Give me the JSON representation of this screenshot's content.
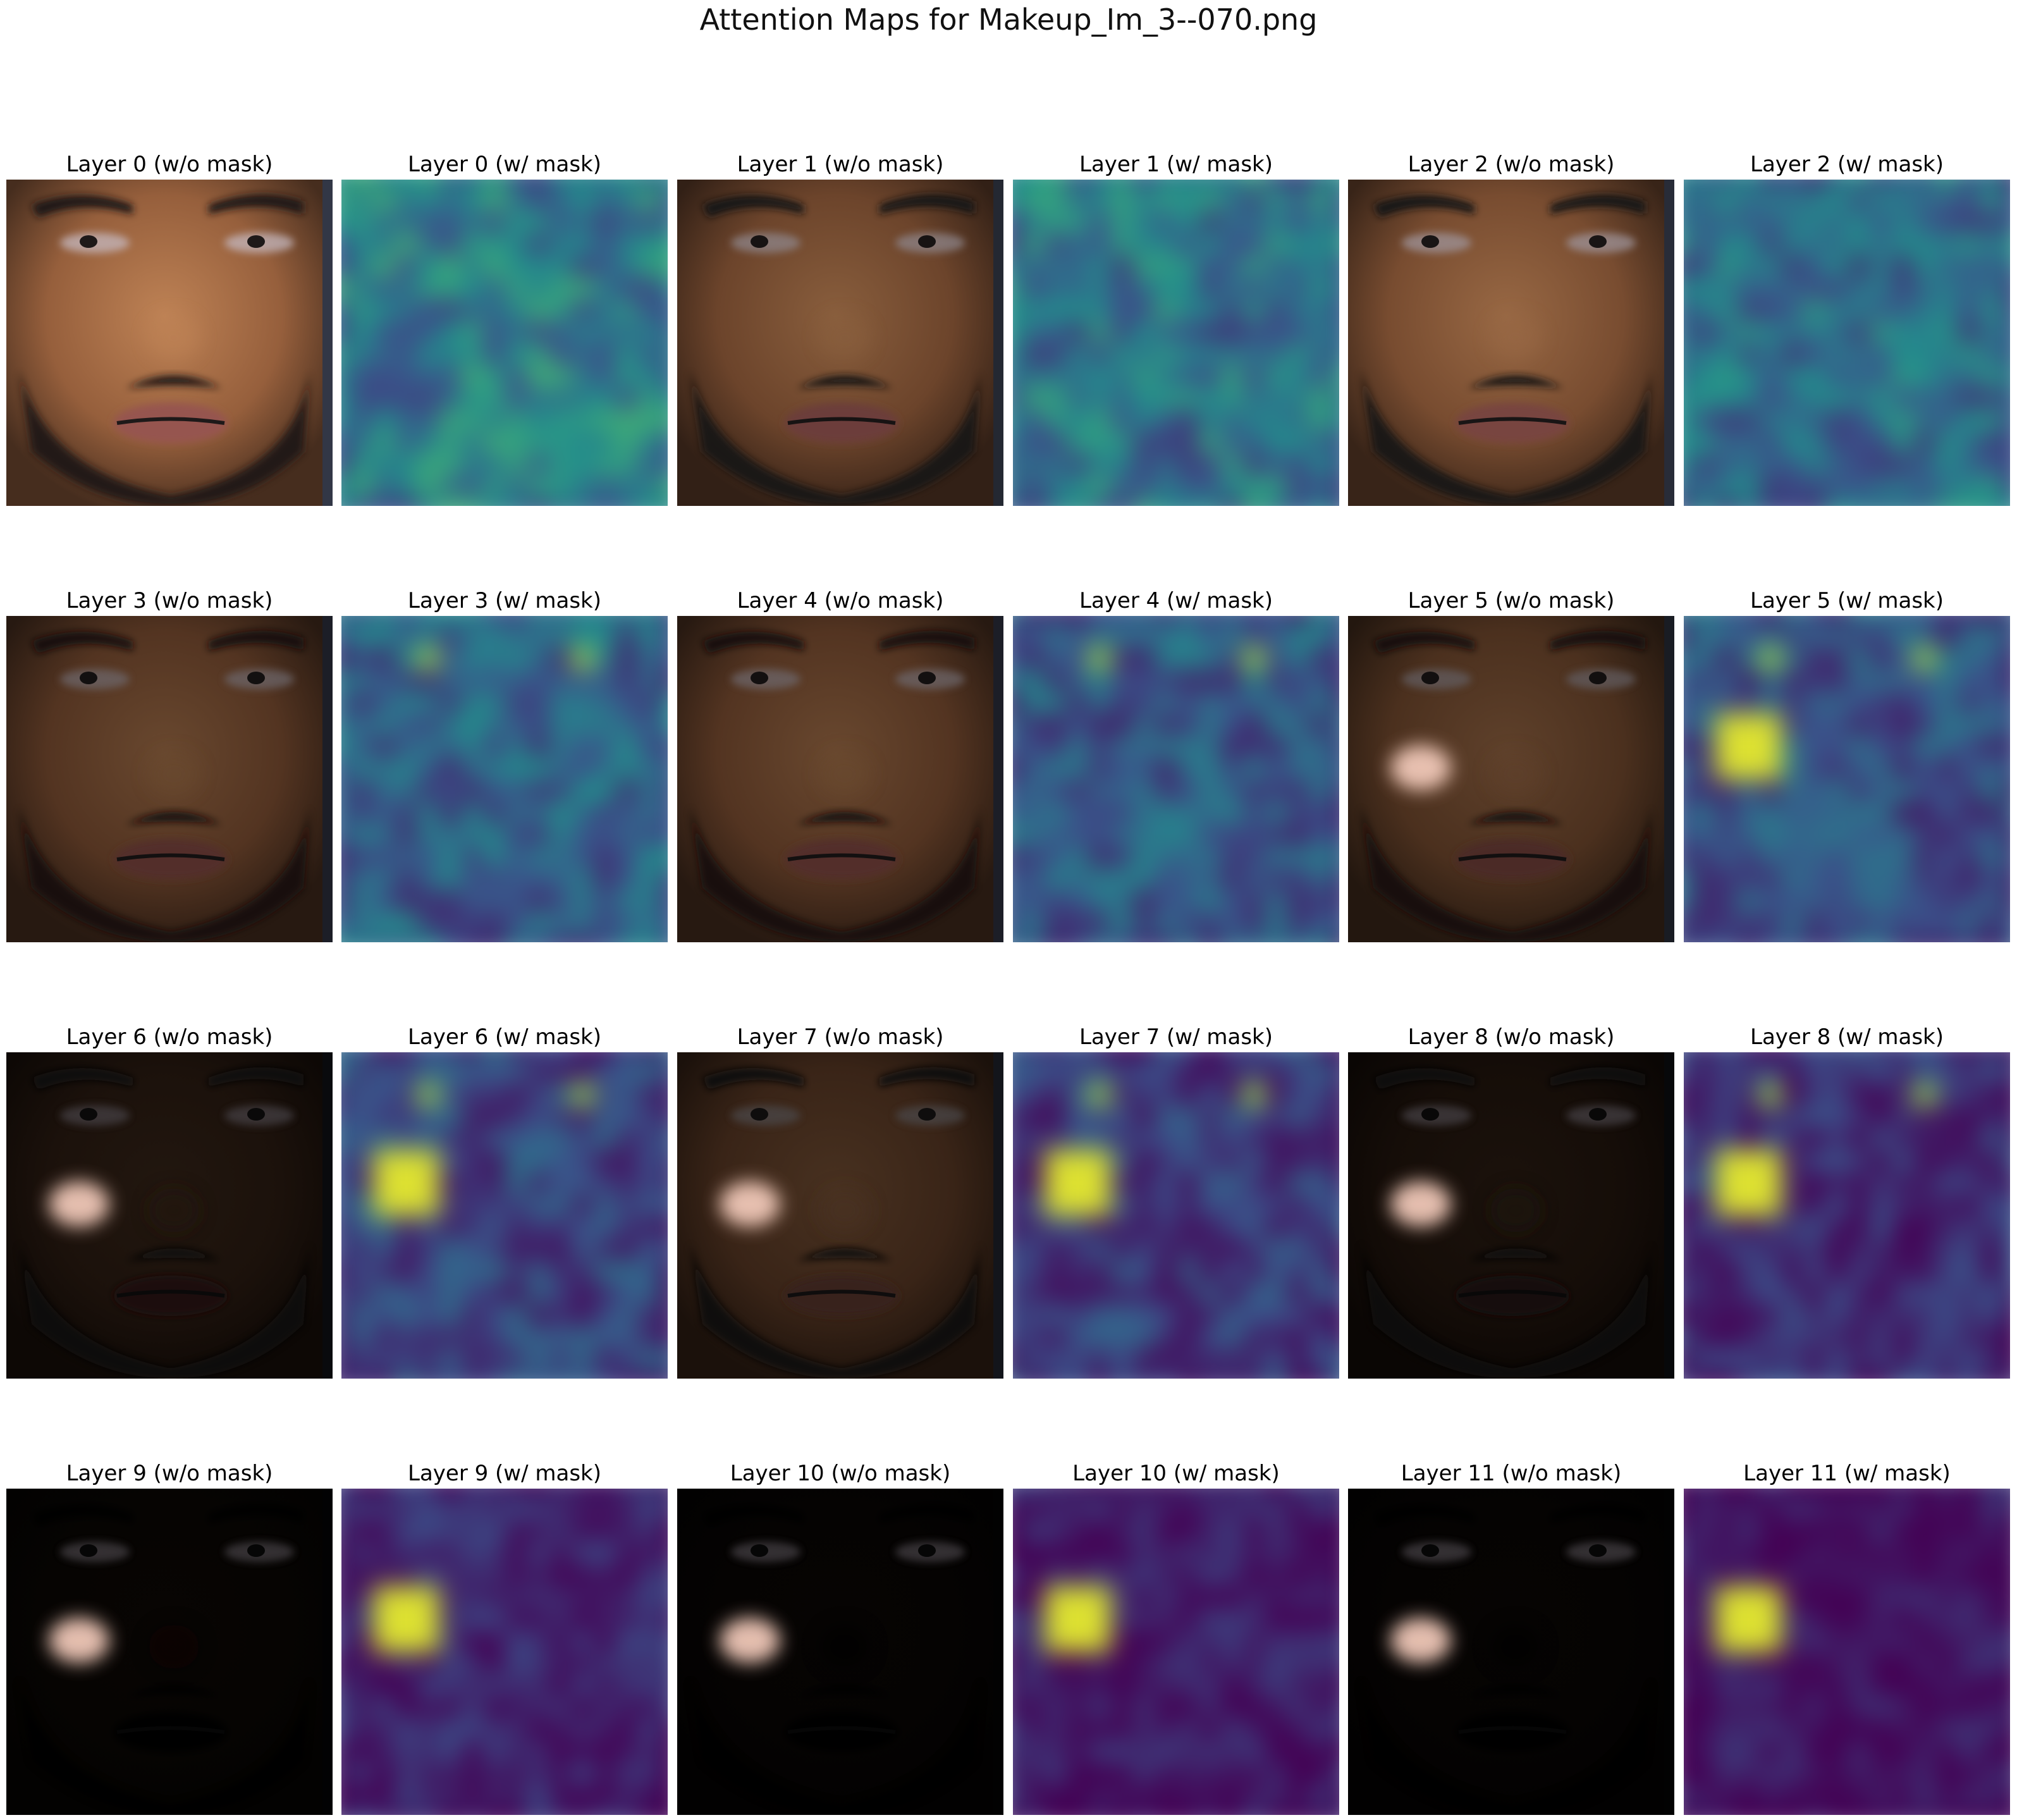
{
  "figure": {
    "title": "Attention Maps for Makeup_Im_3--070.png"
  },
  "panels": [
    {
      "layer": 0,
      "kind": "overlay",
      "title": "Layer 0 (w/o mask)",
      "brightness": 1.0,
      "highlight": null
    },
    {
      "layer": 0,
      "kind": "heatmap",
      "title": "Layer 0 (w/ mask)"
    },
    {
      "layer": 1,
      "kind": "overlay",
      "title": "Layer 1 (w/o mask)",
      "brightness": 0.72,
      "highlight": null
    },
    {
      "layer": 1,
      "kind": "heatmap",
      "title": "Layer 1 (w/ mask)"
    },
    {
      "layer": 2,
      "kind": "overlay",
      "title": "Layer 2 (w/o mask)",
      "brightness": 0.8,
      "highlight": null
    },
    {
      "layer": 2,
      "kind": "heatmap",
      "title": "Layer 2 (w/ mask)"
    },
    {
      "layer": 3,
      "kind": "overlay",
      "title": "Layer 3 (w/o mask)",
      "brightness": 0.55,
      "highlight": null
    },
    {
      "layer": 3,
      "kind": "heatmap",
      "title": "Layer 3 (w/ mask)"
    },
    {
      "layer": 4,
      "kind": "overlay",
      "title": "Layer 4 (w/o mask)",
      "brightness": 0.55,
      "highlight": null
    },
    {
      "layer": 4,
      "kind": "heatmap",
      "title": "Layer 4 (w/ mask)"
    },
    {
      "layer": 5,
      "kind": "overlay",
      "title": "Layer 5 (w/o mask)",
      "brightness": 0.5,
      "highlight": "cheek"
    },
    {
      "layer": 5,
      "kind": "heatmap",
      "title": "Layer 5 (w/ mask)"
    },
    {
      "layer": 6,
      "kind": "overlay",
      "title": "Layer 6 (w/o mask)",
      "brightness": 0.18,
      "highlight": "cheek"
    },
    {
      "layer": 6,
      "kind": "heatmap",
      "title": "Layer 6 (w/ mask)"
    },
    {
      "layer": 7,
      "kind": "overlay",
      "title": "Layer 7 (w/o mask)",
      "brightness": 0.38,
      "highlight": "cheek"
    },
    {
      "layer": 7,
      "kind": "heatmap",
      "title": "Layer 7 (w/ mask)"
    },
    {
      "layer": 8,
      "kind": "overlay",
      "title": "Layer 8 (w/o mask)",
      "brightness": 0.14,
      "highlight": "cheek"
    },
    {
      "layer": 8,
      "kind": "heatmap",
      "title": "Layer 8 (w/ mask)"
    },
    {
      "layer": 9,
      "kind": "overlay",
      "title": "Layer 9 (w/o mask)",
      "brightness": 0.04,
      "highlight": "cheek"
    },
    {
      "layer": 9,
      "kind": "heatmap",
      "title": "Layer 9 (w/ mask)"
    },
    {
      "layer": 10,
      "kind": "overlay",
      "title": "Layer 10 (w/o mask)",
      "brightness": 0.03,
      "highlight": "cheek"
    },
    {
      "layer": 10,
      "kind": "heatmap",
      "title": "Layer 10 (w/ mask)"
    },
    {
      "layer": 11,
      "kind": "overlay",
      "title": "Layer 11 (w/o mask)",
      "brightness": 0.03,
      "highlight": "cheek"
    },
    {
      "layer": 11,
      "kind": "heatmap",
      "title": "Layer 11 (w/ mask)"
    }
  ],
  "colormap": "viridis",
  "colors": {
    "viridis_low": "#440154",
    "viridis_mid": "#21918c",
    "viridis_high": "#fde725",
    "skin": "#b07850",
    "background": "#ffffff"
  }
}
